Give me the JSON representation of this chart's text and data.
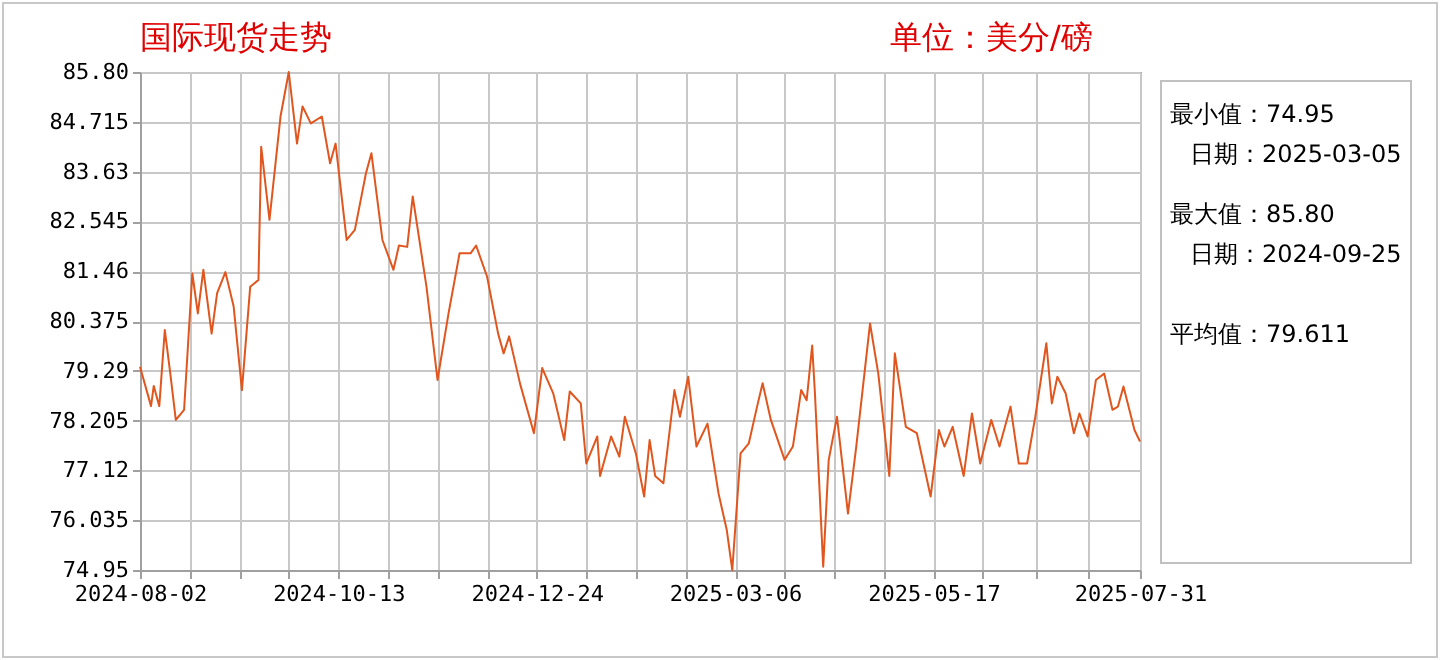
{
  "chart_data": {
    "type": "line",
    "title": "国际现货走势",
    "subtitle": "单位：美分/磅",
    "annotations": [
      "最小值：74.95",
      "日期：2025-03-05",
      "最大值：85.80",
      "日期：2024-09-25",
      "平均值：79.611"
    ],
    "x": [
      "2024-08-02",
      "2024-08-06",
      "2024-08-07",
      "2024-08-09",
      "2024-08-11",
      "2024-08-13",
      "2024-08-15",
      "2024-08-18",
      "2024-08-21",
      "2024-08-23",
      "2024-08-25",
      "2024-08-28",
      "2024-08-30",
      "2024-09-02",
      "2024-09-05",
      "2024-09-08",
      "2024-09-11",
      "2024-09-14",
      "2024-09-15",
      "2024-09-18",
      "2024-09-22",
      "2024-09-25",
      "2024-09-28",
      "2024-09-30",
      "2024-10-03",
      "2024-10-07",
      "2024-10-10",
      "2024-10-12",
      "2024-10-16",
      "2024-10-19",
      "2024-10-23",
      "2024-10-25",
      "2024-10-29",
      "2024-11-02",
      "2024-11-04",
      "2024-11-07",
      "2024-11-09",
      "2024-11-14",
      "2024-11-18",
      "2024-11-22",
      "2024-11-26",
      "2024-11-30",
      "2024-12-02",
      "2024-12-06",
      "2024-12-10",
      "2024-12-12",
      "2024-12-14",
      "2024-12-18",
      "2024-12-23",
      "2024-12-26",
      "2024-12-30",
      "2025-01-03",
      "2025-01-05",
      "2025-01-09",
      "2025-01-11",
      "2025-01-15",
      "2025-01-16",
      "2025-01-20",
      "2025-01-23",
      "2025-01-25",
      "2025-01-29",
      "2025-02-01",
      "2025-02-03",
      "2025-02-05",
      "2025-02-08",
      "2025-02-12",
      "2025-02-14",
      "2025-02-17",
      "2025-02-20",
      "2025-02-24",
      "2025-02-28",
      "2025-03-03",
      "2025-03-05",
      "2025-03-08",
      "2025-03-11",
      "2025-03-14",
      "2025-03-16",
      "2025-03-19",
      "2025-03-24",
      "2025-03-27",
      "2025-03-30",
      "2025-04-01",
      "2025-04-03",
      "2025-04-04",
      "2025-04-07",
      "2025-04-09",
      "2025-04-12",
      "2025-04-16",
      "2025-04-19",
      "2025-04-24",
      "2025-04-27",
      "2025-05-01",
      "2025-05-03",
      "2025-05-07",
      "2025-05-11",
      "2025-05-16",
      "2025-05-19",
      "2025-05-21",
      "2025-05-24",
      "2025-05-28",
      "2025-05-31",
      "2025-06-03",
      "2025-06-07",
      "2025-06-10",
      "2025-06-14",
      "2025-06-17",
      "2025-06-20",
      "2025-06-23",
      "2025-06-27",
      "2025-06-29",
      "2025-07-01",
      "2025-07-04",
      "2025-07-07",
      "2025-07-09",
      "2025-07-12",
      "2025-07-15",
      "2025-07-18",
      "2025-07-21",
      "2025-07-23",
      "2025-07-25",
      "2025-07-29",
      "2025-07-31"
    ],
    "series": [
      {
        "color": "#e0561e",
        "values": [
          79.38,
          78.52,
          78.96,
          78.52,
          80.18,
          79.23,
          78.22,
          78.44,
          81.41,
          80.54,
          81.49,
          80.1,
          80.98,
          81.44,
          80.69,
          78.87,
          81.12,
          81.27,
          84.17,
          82.58,
          84.83,
          85.8,
          84.24,
          85.05,
          84.68,
          84.83,
          83.81,
          84.24,
          82.14,
          82.36,
          83.59,
          84.03,
          82.14,
          81.49,
          82.02,
          81.99,
          83.09,
          81.12,
          79.09,
          80.54,
          81.85,
          81.85,
          82.02,
          81.34,
          80.1,
          79.67,
          80.04,
          79.0,
          77.93,
          79.35,
          78.8,
          77.78,
          78.84,
          78.58,
          77.27,
          77.86,
          77.0,
          77.86,
          77.42,
          78.29,
          77.49,
          76.55,
          77.78,
          77.0,
          76.84,
          78.87,
          78.29,
          79.16,
          77.64,
          78.14,
          76.62,
          75.82,
          74.95,
          77.49,
          77.71,
          78.51,
          79.02,
          78.22,
          77.35,
          77.64,
          78.87,
          78.65,
          79.84,
          78.8,
          75.02,
          77.35,
          78.29,
          76.18,
          77.64,
          80.32,
          79.23,
          77.0,
          79.67,
          78.07,
          77.93,
          76.55,
          78.0,
          77.64,
          78.07,
          77.0,
          78.36,
          77.27,
          78.22,
          77.64,
          78.51,
          77.27,
          77.27,
          78.29,
          79.89,
          78.58,
          79.16,
          78.8,
          77.93,
          78.36,
          77.86,
          79.09,
          79.23,
          78.44,
          78.51,
          78.95,
          78.0,
          77.75
        ]
      }
    ],
    "xlim": [
      "2024-08-02",
      "2025-07-31"
    ],
    "xticks": [
      "2024-08-02",
      {
        "value": "2024-08-20",
        "label": null
      },
      {
        "value": "2024-09-07",
        "label": null
      },
      {
        "value": "2024-09-25",
        "label": null
      },
      "2024-10-13",
      {
        "value": "2024-10-31",
        "label": null
      },
      {
        "value": "2024-11-18",
        "label": null
      },
      {
        "value": "2024-12-06",
        "label": null
      },
      "2024-12-24",
      {
        "value": "2025-01-11",
        "label": null
      },
      {
        "value": "2025-01-29",
        "label": null
      },
      {
        "value": "2025-02-16",
        "label": null
      },
      "2025-03-06",
      {
        "value": "2025-03-24",
        "label": null
      },
      {
        "value": "2025-04-11",
        "label": null
      },
      {
        "value": "2025-04-29",
        "label": null
      },
      "2025-05-17",
      {
        "value": "2025-06-04",
        "label": null
      },
      {
        "value": "2025-06-23",
        "label": null
      },
      {
        "value": "2025-07-12",
        "label": null
      },
      "2025-07-31"
    ],
    "ylim": [
      74.95,
      85.8
    ],
    "yticks": [
      74.95,
      76.035,
      77.12,
      78.205,
      79.29,
      80.375,
      81.46,
      82.545,
      83.63,
      84.715,
      {
        "value": 85.8,
        "label": "85.80"
      }
    ],
    "grid": true,
    "marker": "none",
    "line_style": "solid"
  }
}
